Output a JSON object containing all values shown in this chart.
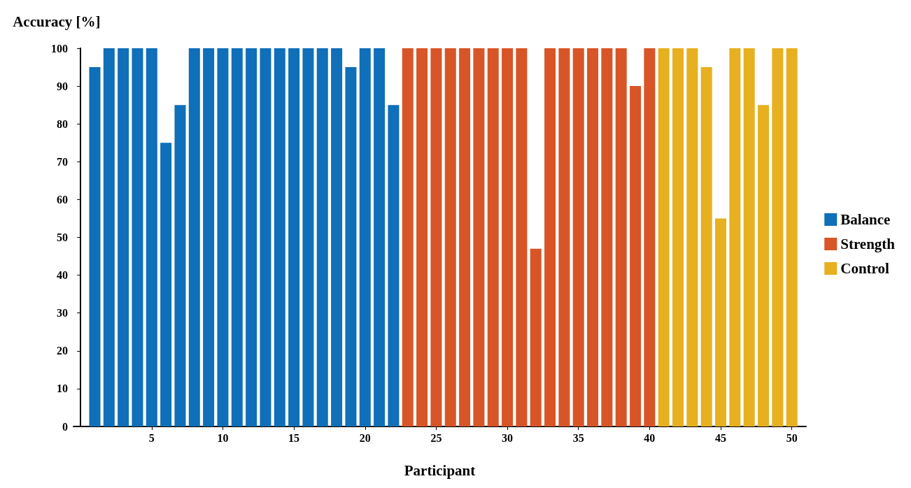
{
  "chart_data": {
    "type": "bar",
    "xlabel": "Participant",
    "ylabel": "Accuracy [%]",
    "xlim": [
      -0.5,
      51
    ],
    "xticks": [
      5,
      10,
      15,
      20,
      25,
      30,
      35,
      40,
      45,
      50
    ],
    "ylim": [
      0,
      100
    ],
    "yticks": [
      0,
      10,
      20,
      30,
      40,
      50,
      60,
      70,
      80,
      90,
      100
    ],
    "grid": false,
    "legend": "right",
    "series": [
      {
        "name": "Balance",
        "color": "#0f6fb8",
        "x": [
          1,
          2,
          3,
          4,
          5,
          6,
          7,
          8,
          9,
          10,
          11,
          12,
          13,
          14,
          15,
          16,
          17,
          18,
          19,
          20,
          21,
          22
        ],
        "values": [
          95,
          100,
          100,
          100,
          100,
          75,
          85,
          100,
          100,
          100,
          100,
          100,
          100,
          100,
          100,
          100,
          100,
          100,
          95,
          100,
          100,
          85
        ]
      },
      {
        "name": "Strength",
        "color": "#d85527",
        "x": [
          23,
          24,
          25,
          26,
          27,
          28,
          29,
          30,
          31,
          32,
          33,
          34,
          35,
          36,
          37,
          38,
          39,
          40
        ],
        "values": [
          100,
          100,
          100,
          100,
          100,
          100,
          100,
          100,
          100,
          47,
          100,
          100,
          100,
          100,
          100,
          100,
          90,
          100
        ]
      },
      {
        "name": "Control",
        "color": "#e6b020",
        "x": [
          41,
          42,
          43,
          44,
          45,
          46,
          47,
          48,
          49,
          50
        ],
        "values": [
          100,
          100,
          100,
          95,
          55,
          100,
          100,
          85,
          100,
          100
        ]
      }
    ]
  }
}
